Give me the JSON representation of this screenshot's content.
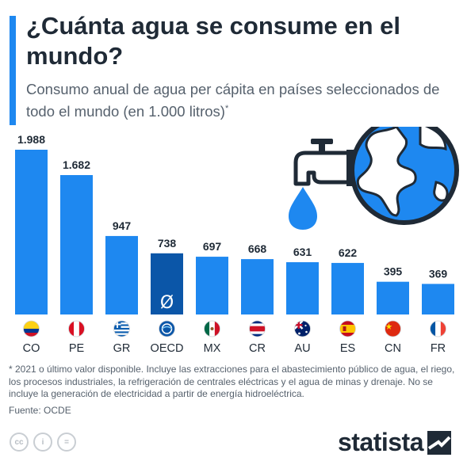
{
  "title": "¿Cuánta agua se consume en el mundo?",
  "subtitle": "Consumo anual de agua per cápita en países seleccionados de todo el mundo (en 1.000 litros)",
  "subtitle_mark": "*",
  "footnote": "* 2021 o último valor disponible. Incluye las extracciones para el abastecimiento público de agua, el riego, los procesos industriales, la refrigeración de centrales eléctricas y el agua de minas y drenaje. No se incluye la generación de electricidad a partir de energía hidroeléctrica.",
  "source": "Fuente: OCDE",
  "brand": "statista",
  "license_icons": [
    "cc",
    "i",
    "="
  ],
  "colors": {
    "bar": "#1e88f0",
    "highlight_bar": "#0b56a8",
    "text": "#1f2a36",
    "subtext": "#56616d"
  },
  "chart_data": {
    "type": "bar",
    "categories": [
      "CO",
      "PE",
      "GR",
      "OECD",
      "MX",
      "CR",
      "AU",
      "ES",
      "CN",
      "FR"
    ],
    "values": [
      1988,
      1682,
      947,
      738,
      697,
      668,
      631,
      622,
      395,
      369
    ],
    "value_labels": [
      "1.988",
      "1.682",
      "947",
      "738",
      "697",
      "668",
      "631",
      "622",
      "395",
      "369"
    ],
    "highlight": "OECD",
    "highlight_symbol": "Ø",
    "flags": [
      "colombia-flag-icon",
      "peru-flag-icon",
      "greece-flag-icon",
      "oecd-logo-icon",
      "mexico-flag-icon",
      "costa-rica-flag-icon",
      "australia-flag-icon",
      "spain-flag-icon",
      "china-flag-icon",
      "france-flag-icon"
    ],
    "ylim": [
      0,
      1988
    ],
    "grid": false,
    "legend": "none"
  }
}
